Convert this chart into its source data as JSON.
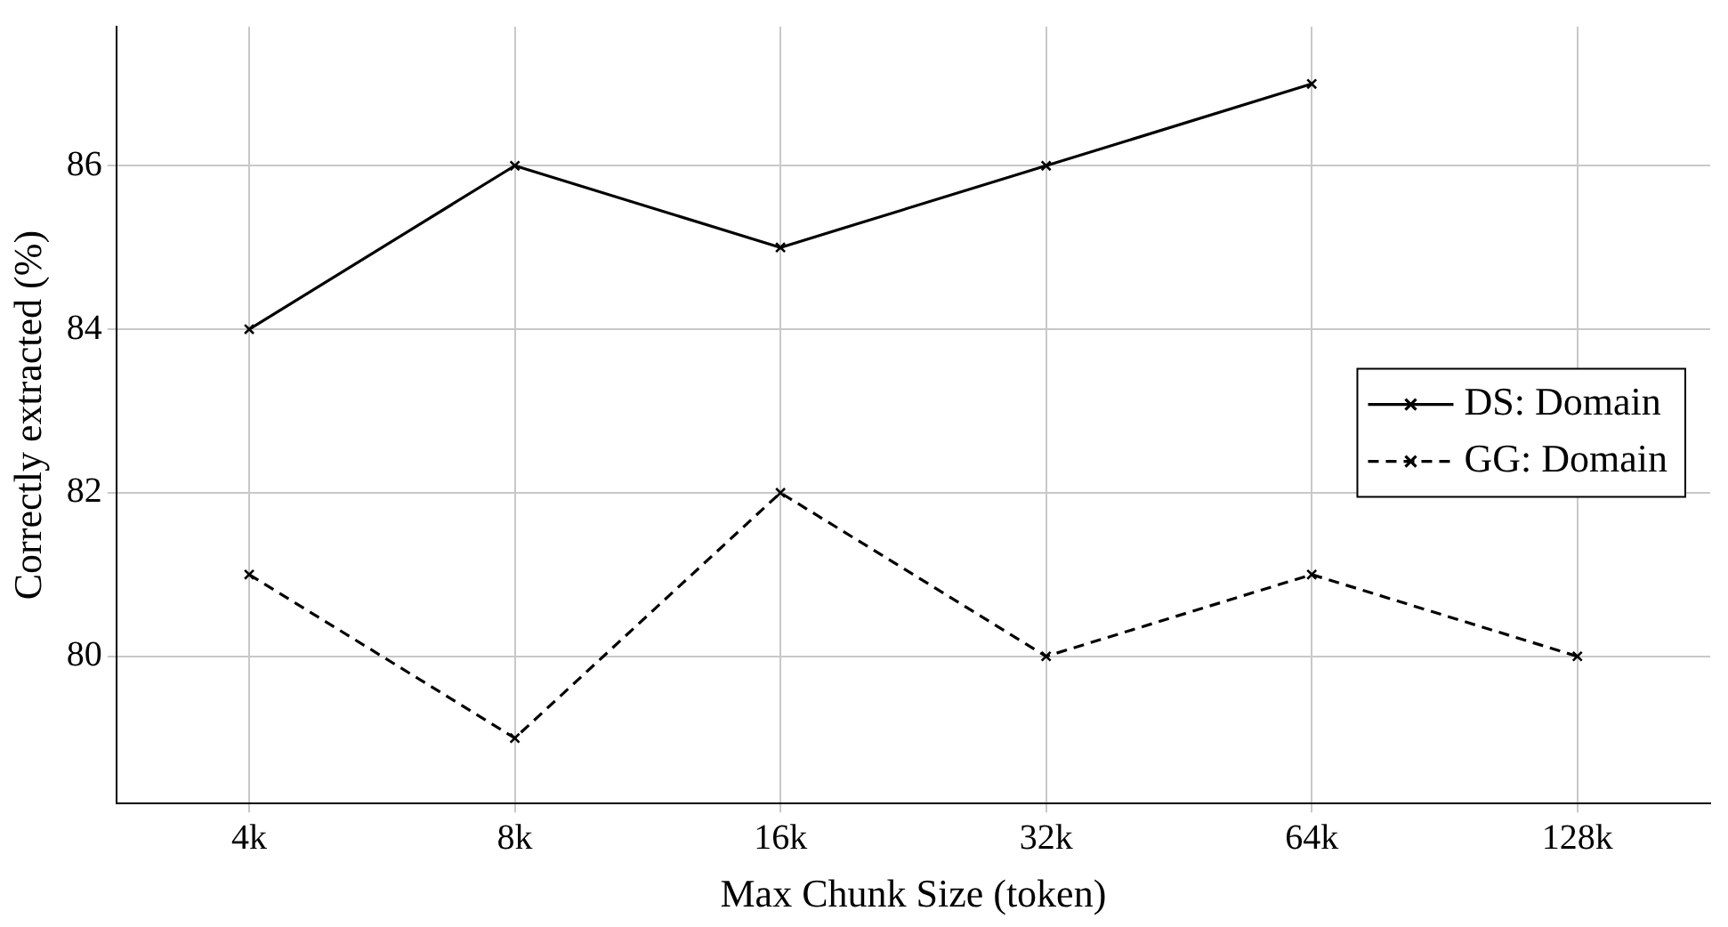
{
  "chart_data": {
    "type": "line",
    "xlabel": "Max Chunk Size (token)",
    "ylabel": "Correctly extracted (%)",
    "categories": [
      "4k",
      "8k",
      "16k",
      "32k",
      "64k",
      "128k"
    ],
    "series": [
      {
        "name": "DS: Domain",
        "color": "#000000",
        "line_style": "solid",
        "values": [
          84,
          86,
          85,
          86,
          87,
          null
        ]
      },
      {
        "name": "GG: Domain",
        "color": "#000000",
        "line_style": "dashed",
        "values": [
          81,
          79,
          82,
          80,
          81,
          80
        ]
      }
    ],
    "ylim": [
      78.2,
      87.7
    ],
    "yticks": [
      80,
      82,
      84,
      86
    ],
    "grid": true,
    "legend": "right",
    "marker": "cross"
  }
}
